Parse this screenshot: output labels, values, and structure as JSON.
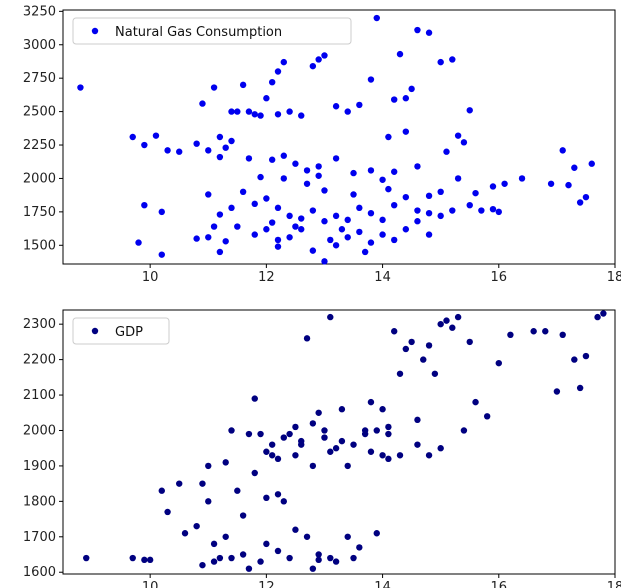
{
  "chart_data": [
    {
      "type": "scatter",
      "legend": "Natural  Gas Consumption",
      "legend_position": "top-left",
      "color": "#0000ee",
      "xlim": [
        8.5,
        18.0
      ],
      "ylim": [
        1360,
        3260
      ],
      "xticks": [
        10,
        12,
        14,
        16,
        18
      ],
      "xtick_labels": [
        "10",
        "12",
        "14",
        "16",
        "18"
      ],
      "yticks": [
        1500,
        1750,
        2000,
        2250,
        2500,
        2750,
        3000,
        3250
      ],
      "ytick_labels": [
        "1500",
        "1750",
        "2000",
        "2250",
        "2500",
        "2750",
        "3000",
        "3250"
      ],
      "grid": false,
      "points": [
        [
          8.8,
          2680
        ],
        [
          9.7,
          2310
        ],
        [
          9.9,
          2250
        ],
        [
          10.1,
          2320
        ],
        [
          10.3,
          2210
        ],
        [
          10.5,
          2200
        ],
        [
          10.8,
          2260
        ],
        [
          10.9,
          2560
        ],
        [
          11.0,
          2210
        ],
        [
          11.1,
          2680
        ],
        [
          11.2,
          2310
        ],
        [
          11.3,
          2230
        ],
        [
          11.4,
          2500
        ],
        [
          11.5,
          2500
        ],
        [
          11.6,
          2700
        ],
        [
          11.7,
          2500
        ],
        [
          11.8,
          2480
        ],
        [
          11.9,
          2470
        ],
        [
          12.0,
          2600
        ],
        [
          12.1,
          2720
        ],
        [
          12.2,
          2800
        ],
        [
          12.3,
          2870
        ],
        [
          12.2,
          2480
        ],
        [
          12.4,
          2500
        ],
        [
          12.6,
          2470
        ],
        [
          12.8,
          2840
        ],
        [
          12.9,
          2890
        ],
        [
          13.0,
          2920
        ],
        [
          13.2,
          2540
        ],
        [
          13.4,
          2500
        ],
        [
          13.6,
          2550
        ],
        [
          13.8,
          2740
        ],
        [
          13.9,
          3200
        ],
        [
          14.1,
          2310
        ],
        [
          14.2,
          2590
        ],
        [
          14.3,
          2930
        ],
        [
          14.4,
          2600
        ],
        [
          14.5,
          2670
        ],
        [
          14.6,
          3110
        ],
        [
          14.8,
          3090
        ],
        [
          15.0,
          2870
        ],
        [
          15.2,
          2890
        ],
        [
          15.3,
          2320
        ],
        [
          15.5,
          2510
        ],
        [
          15.4,
          2270
        ],
        [
          15.1,
          2200
        ],
        [
          11.2,
          2160
        ],
        [
          11.7,
          2150
        ],
        [
          12.1,
          2140
        ],
        [
          12.3,
          2170
        ],
        [
          12.5,
          2110
        ],
        [
          12.7,
          2060
        ],
        [
          12.9,
          2090
        ],
        [
          13.2,
          2150
        ],
        [
          13.5,
          2040
        ],
        [
          13.8,
          2060
        ],
        [
          14.0,
          1990
        ],
        [
          14.2,
          2050
        ],
        [
          14.4,
          2350
        ],
        [
          14.6,
          2090
        ],
        [
          14.8,
          1870
        ],
        [
          15.0,
          1900
        ],
        [
          15.3,
          2000
        ],
        [
          15.6,
          1890
        ],
        [
          15.9,
          1940
        ],
        [
          16.1,
          1960
        ],
        [
          16.4,
          2000
        ],
        [
          16.9,
          1960
        ],
        [
          17.1,
          2210
        ],
        [
          17.3,
          2080
        ],
        [
          17.5,
          1860
        ],
        [
          17.6,
          2110
        ],
        [
          17.2,
          1950
        ],
        [
          17.4,
          1820
        ],
        [
          9.9,
          1800
        ],
        [
          10.2,
          1750
        ],
        [
          11.0,
          1880
        ],
        [
          11.2,
          1730
        ],
        [
          11.4,
          1780
        ],
        [
          11.6,
          1900
        ],
        [
          11.8,
          1810
        ],
        [
          12.0,
          1850
        ],
        [
          12.2,
          1780
        ],
        [
          12.4,
          1720
        ],
        [
          12.6,
          1700
        ],
        [
          12.8,
          1760
        ],
        [
          13.0,
          1680
        ],
        [
          13.2,
          1720
        ],
        [
          13.4,
          1690
        ],
        [
          13.6,
          1780
        ],
        [
          13.8,
          1740
        ],
        [
          14.0,
          1690
        ],
        [
          14.2,
          1800
        ],
        [
          14.4,
          1860
        ],
        [
          14.6,
          1760
        ],
        [
          14.8,
          1740
        ],
        [
          15.0,
          1720
        ],
        [
          15.2,
          1760
        ],
        [
          15.5,
          1800
        ],
        [
          15.7,
          1760
        ],
        [
          15.9,
          1770
        ],
        [
          16.0,
          1750
        ],
        [
          9.8,
          1520
        ],
        [
          10.2,
          1430
        ],
        [
          10.8,
          1550
        ],
        [
          11.0,
          1560
        ],
        [
          11.2,
          1450
        ],
        [
          11.3,
          1530
        ],
        [
          11.5,
          1640
        ],
        [
          11.8,
          1580
        ],
        [
          12.0,
          1620
        ],
        [
          12.2,
          1540
        ],
        [
          12.4,
          1560
        ],
        [
          12.6,
          1620
        ],
        [
          12.8,
          1460
        ],
        [
          13.0,
          1380
        ],
        [
          13.2,
          1500
        ],
        [
          13.4,
          1560
        ],
        [
          13.6,
          1600
        ],
        [
          13.8,
          1520
        ],
        [
          14.0,
          1580
        ],
        [
          14.2,
          1540
        ],
        [
          14.4,
          1620
        ],
        [
          14.6,
          1680
        ],
        [
          14.8,
          1580
        ],
        [
          12.1,
          1670
        ],
        [
          12.5,
          1640
        ],
        [
          13.1,
          1540
        ],
        [
          13.7,
          1450
        ],
        [
          11.1,
          1640
        ],
        [
          11.4,
          2280
        ],
        [
          11.9,
          2010
        ],
        [
          12.3,
          2000
        ],
        [
          12.7,
          1960
        ],
        [
          13.0,
          1910
        ],
        [
          13.5,
          1880
        ],
        [
          14.1,
          1920
        ],
        [
          12.9,
          2020
        ],
        [
          13.3,
          1620
        ],
        [
          12.2,
          1490
        ]
      ]
    },
    {
      "type": "scatter",
      "legend": "GDP",
      "legend_position": "top-left",
      "color": "#000080",
      "xlim": [
        8.5,
        18.0
      ],
      "ylim": [
        1595,
        2340
      ],
      "xticks": [
        10,
        12,
        14,
        16,
        18
      ],
      "xtick_labels": [
        "10",
        "12",
        "14",
        "16",
        "18"
      ],
      "yticks": [
        1600,
        1700,
        1800,
        1900,
        2000,
        2100,
        2200,
        2300
      ],
      "ytick_labels": [
        "1600",
        "1700",
        "1800",
        "1900",
        "2000",
        "2100",
        "2200",
        "2300"
      ],
      "grid": false,
      "points": [
        [
          8.9,
          1640
        ],
        [
          9.7,
          1640
        ],
        [
          9.9,
          1635
        ],
        [
          10.0,
          1635
        ],
        [
          10.2,
          1830
        ],
        [
          10.3,
          1770
        ],
        [
          10.5,
          1850
        ],
        [
          10.6,
          1710
        ],
        [
          10.8,
          1730
        ],
        [
          10.9,
          1850
        ],
        [
          11.0,
          1800
        ],
        [
          11.0,
          1900
        ],
        [
          11.1,
          1680
        ],
        [
          11.2,
          1640
        ],
        [
          11.3,
          1910
        ],
        [
          11.4,
          2000
        ],
        [
          11.5,
          1830
        ],
        [
          11.6,
          1760
        ],
        [
          11.7,
          1990
        ],
        [
          11.8,
          2090
        ],
        [
          11.9,
          1990
        ],
        [
          12.0,
          1940
        ],
        [
          12.1,
          1930
        ],
        [
          12.2,
          1820
        ],
        [
          12.3,
          1980
        ],
        [
          12.4,
          1990
        ],
        [
          12.5,
          2010
        ],
        [
          12.6,
          1960
        ],
        [
          12.7,
          2260
        ],
        [
          12.8,
          2020
        ],
        [
          12.9,
          2050
        ],
        [
          13.0,
          2000
        ],
        [
          13.1,
          2320
        ],
        [
          13.2,
          1950
        ],
        [
          13.3,
          2060
        ],
        [
          13.5,
          1960
        ],
        [
          13.7,
          1990
        ],
        [
          13.8,
          2080
        ],
        [
          13.9,
          2000
        ],
        [
          14.0,
          2060
        ],
        [
          14.1,
          2010
        ],
        [
          14.2,
          2280
        ],
        [
          14.3,
          2160
        ],
        [
          14.4,
          2230
        ],
        [
          14.5,
          2250
        ],
        [
          14.6,
          2030
        ],
        [
          14.7,
          2200
        ],
        [
          14.8,
          1930
        ],
        [
          14.9,
          2160
        ],
        [
          15.0,
          2300
        ],
        [
          15.1,
          2310
        ],
        [
          15.2,
          2290
        ],
        [
          15.3,
          2320
        ],
        [
          15.4,
          2000
        ],
        [
          15.5,
          2250
        ],
        [
          15.6,
          2080
        ],
        [
          15.8,
          2040
        ],
        [
          16.0,
          2190
        ],
        [
          16.2,
          2270
        ],
        [
          16.6,
          2280
        ],
        [
          16.8,
          2280
        ],
        [
          17.0,
          2110
        ],
        [
          17.1,
          2270
        ],
        [
          17.3,
          2200
        ],
        [
          17.4,
          2120
        ],
        [
          17.5,
          2210
        ],
        [
          17.7,
          2320
        ],
        [
          17.8,
          2330
        ],
        [
          11.3,
          1700
        ],
        [
          11.6,
          1650
        ],
        [
          12.0,
          1680
        ],
        [
          12.2,
          1660
        ],
        [
          12.5,
          1720
        ],
        [
          12.7,
          1700
        ],
        [
          12.9,
          1650
        ],
        [
          13.1,
          1640
        ],
        [
          13.4,
          1700
        ],
        [
          13.6,
          1670
        ],
        [
          13.9,
          1710
        ],
        [
          12.2,
          1920
        ],
        [
          12.5,
          1930
        ],
        [
          12.8,
          1900
        ],
        [
          13.1,
          1940
        ],
        [
          13.4,
          1900
        ],
        [
          13.8,
          1940
        ],
        [
          14.0,
          1930
        ],
        [
          14.3,
          1930
        ],
        [
          14.6,
          1960
        ],
        [
          15.0,
          1950
        ],
        [
          12.0,
          1810
        ],
        [
          12.3,
          1800
        ],
        [
          11.8,
          1880
        ],
        [
          12.1,
          1960
        ],
        [
          12.6,
          1970
        ],
        [
          13.0,
          1980
        ],
        [
          13.3,
          1970
        ],
        [
          13.7,
          2000
        ],
        [
          14.1,
          1990
        ],
        [
          11.1,
          1630
        ],
        [
          11.4,
          1640
        ],
        [
          11.9,
          1630
        ],
        [
          12.4,
          1640
        ],
        [
          12.9,
          1635
        ],
        [
          13.2,
          1630
        ],
        [
          13.5,
          1640
        ],
        [
          10.9,
          1620
        ],
        [
          11.7,
          1610
        ],
        [
          12.8,
          1610
        ],
        [
          14.1,
          1920
        ],
        [
          14.8,
          2240
        ]
      ]
    }
  ]
}
